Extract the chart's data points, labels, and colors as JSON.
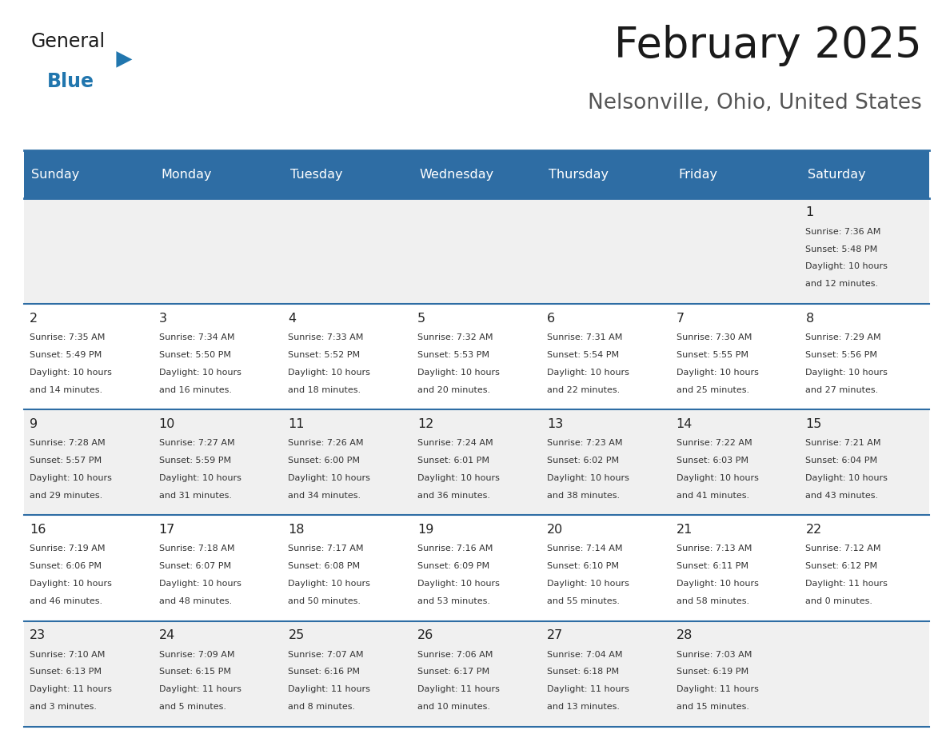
{
  "title": "February 2025",
  "subtitle": "Nelsonville, Ohio, United States",
  "header_bg": "#2E6DA4",
  "header_text_color": "#FFFFFF",
  "days_of_week": [
    "Sunday",
    "Monday",
    "Tuesday",
    "Wednesday",
    "Thursday",
    "Friday",
    "Saturday"
  ],
  "row_bg_even": "#F0F0F0",
  "row_bg_odd": "#FFFFFF",
  "cell_border_color": "#2E6DA4",
  "calendar_data": [
    [
      null,
      null,
      null,
      null,
      null,
      null,
      {
        "day": 1,
        "sunrise": "7:36 AM",
        "sunset": "5:48 PM",
        "daylight": "10 hours\nand 12 minutes."
      }
    ],
    [
      {
        "day": 2,
        "sunrise": "7:35 AM",
        "sunset": "5:49 PM",
        "daylight": "10 hours\nand 14 minutes."
      },
      {
        "day": 3,
        "sunrise": "7:34 AM",
        "sunset": "5:50 PM",
        "daylight": "10 hours\nand 16 minutes."
      },
      {
        "day": 4,
        "sunrise": "7:33 AM",
        "sunset": "5:52 PM",
        "daylight": "10 hours\nand 18 minutes."
      },
      {
        "day": 5,
        "sunrise": "7:32 AM",
        "sunset": "5:53 PM",
        "daylight": "10 hours\nand 20 minutes."
      },
      {
        "day": 6,
        "sunrise": "7:31 AM",
        "sunset": "5:54 PM",
        "daylight": "10 hours\nand 22 minutes."
      },
      {
        "day": 7,
        "sunrise": "7:30 AM",
        "sunset": "5:55 PM",
        "daylight": "10 hours\nand 25 minutes."
      },
      {
        "day": 8,
        "sunrise": "7:29 AM",
        "sunset": "5:56 PM",
        "daylight": "10 hours\nand 27 minutes."
      }
    ],
    [
      {
        "day": 9,
        "sunrise": "7:28 AM",
        "sunset": "5:57 PM",
        "daylight": "10 hours\nand 29 minutes."
      },
      {
        "day": 10,
        "sunrise": "7:27 AM",
        "sunset": "5:59 PM",
        "daylight": "10 hours\nand 31 minutes."
      },
      {
        "day": 11,
        "sunrise": "7:26 AM",
        "sunset": "6:00 PM",
        "daylight": "10 hours\nand 34 minutes."
      },
      {
        "day": 12,
        "sunrise": "7:24 AM",
        "sunset": "6:01 PM",
        "daylight": "10 hours\nand 36 minutes."
      },
      {
        "day": 13,
        "sunrise": "7:23 AM",
        "sunset": "6:02 PM",
        "daylight": "10 hours\nand 38 minutes."
      },
      {
        "day": 14,
        "sunrise": "7:22 AM",
        "sunset": "6:03 PM",
        "daylight": "10 hours\nand 41 minutes."
      },
      {
        "day": 15,
        "sunrise": "7:21 AM",
        "sunset": "6:04 PM",
        "daylight": "10 hours\nand 43 minutes."
      }
    ],
    [
      {
        "day": 16,
        "sunrise": "7:19 AM",
        "sunset": "6:06 PM",
        "daylight": "10 hours\nand 46 minutes."
      },
      {
        "day": 17,
        "sunrise": "7:18 AM",
        "sunset": "6:07 PM",
        "daylight": "10 hours\nand 48 minutes."
      },
      {
        "day": 18,
        "sunrise": "7:17 AM",
        "sunset": "6:08 PM",
        "daylight": "10 hours\nand 50 minutes."
      },
      {
        "day": 19,
        "sunrise": "7:16 AM",
        "sunset": "6:09 PM",
        "daylight": "10 hours\nand 53 minutes."
      },
      {
        "day": 20,
        "sunrise": "7:14 AM",
        "sunset": "6:10 PM",
        "daylight": "10 hours\nand 55 minutes."
      },
      {
        "day": 21,
        "sunrise": "7:13 AM",
        "sunset": "6:11 PM",
        "daylight": "10 hours\nand 58 minutes."
      },
      {
        "day": 22,
        "sunrise": "7:12 AM",
        "sunset": "6:12 PM",
        "daylight": "11 hours\nand 0 minutes."
      }
    ],
    [
      {
        "day": 23,
        "sunrise": "7:10 AM",
        "sunset": "6:13 PM",
        "daylight": "11 hours\nand 3 minutes."
      },
      {
        "day": 24,
        "sunrise": "7:09 AM",
        "sunset": "6:15 PM",
        "daylight": "11 hours\nand 5 minutes."
      },
      {
        "day": 25,
        "sunrise": "7:07 AM",
        "sunset": "6:16 PM",
        "daylight": "11 hours\nand 8 minutes."
      },
      {
        "day": 26,
        "sunrise": "7:06 AM",
        "sunset": "6:17 PM",
        "daylight": "11 hours\nand 10 minutes."
      },
      {
        "day": 27,
        "sunrise": "7:04 AM",
        "sunset": "6:18 PM",
        "daylight": "11 hours\nand 13 minutes."
      },
      {
        "day": 28,
        "sunrise": "7:03 AM",
        "sunset": "6:19 PM",
        "daylight": "11 hours\nand 15 minutes."
      },
      null
    ]
  ],
  "logo_general_color": "#1a1a1a",
  "logo_blue_color": "#2176AE",
  "logo_triangle_color": "#2176AE",
  "fig_width": 11.88,
  "fig_height": 9.18,
  "dpi": 100
}
